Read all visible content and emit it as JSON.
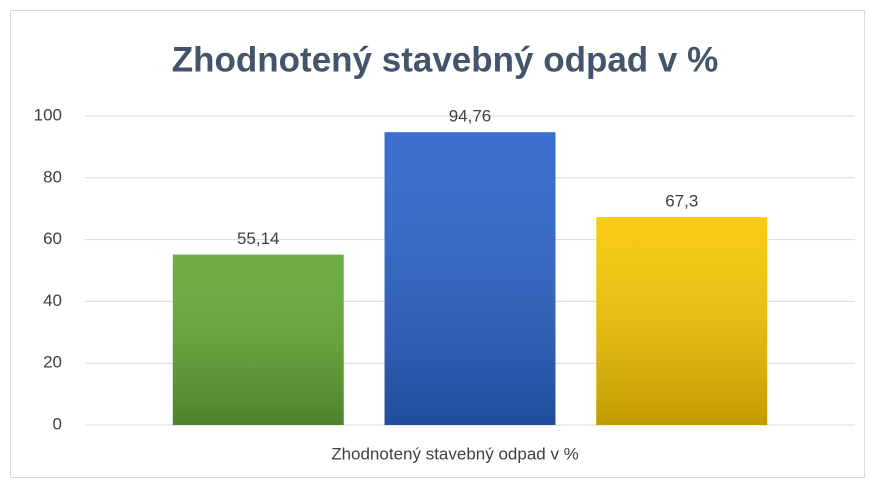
{
  "chart_data": {
    "type": "bar",
    "title": "Zhodnotený stavebný odpad v %",
    "categories": [
      "Zhodnotený stavebný odpad v %"
    ],
    "series": [
      {
        "color": "#62a834",
        "values": [
          55.14
        ],
        "value_labels": [
          "55,14"
        ]
      },
      {
        "color": "#2a62c9",
        "values": [
          94.76
        ],
        "value_labels": [
          "94,76"
        ]
      },
      {
        "color": "#f7c600",
        "values": [
          67.3
        ],
        "value_labels": [
          "67,3"
        ]
      }
    ],
    "ylim": [
      0,
      100
    ],
    "yticks": [
      0,
      20,
      40,
      60,
      80,
      100
    ],
    "grid": true
  }
}
